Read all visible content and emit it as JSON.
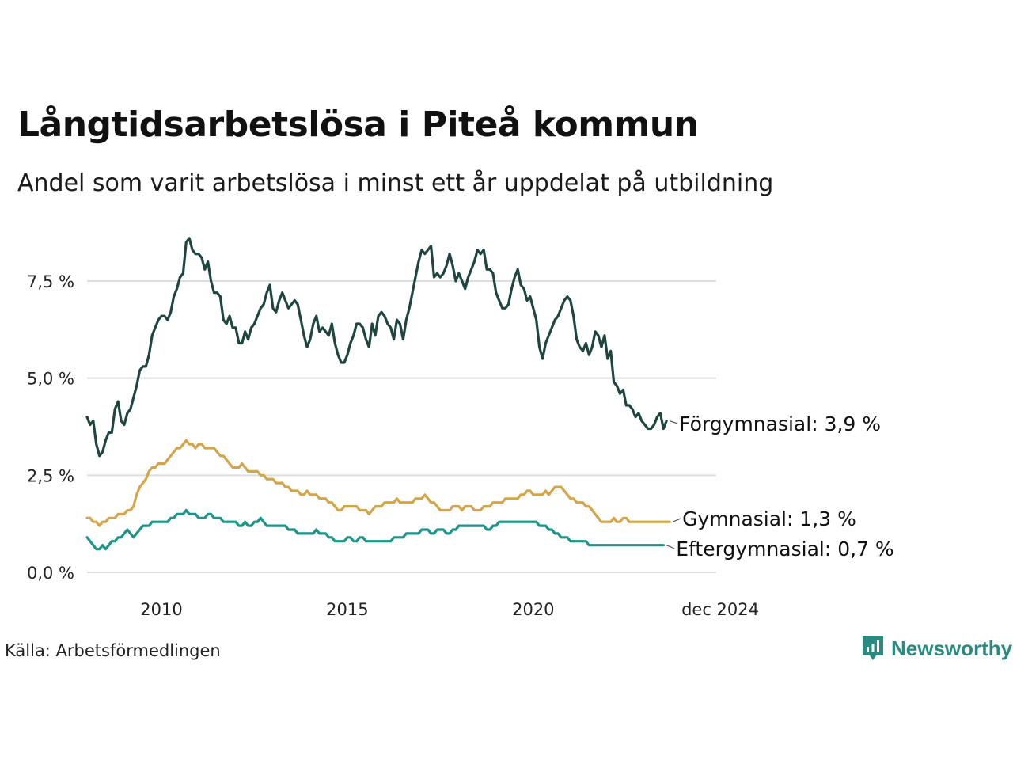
{
  "title": "Långtidsarbetslösa i Piteå kommun",
  "subtitle": "Andel som varit arbetslösa i minst ett år uppdelat på utbildning",
  "source": "Källa: Arbetsförmedlingen",
  "brand": {
    "name": "Newsworthy",
    "icon": "newsworthy-logo-icon",
    "color": "#2a8a80"
  },
  "chart_data": {
    "type": "line",
    "title": "Långtidsarbetslösa i Piteå kommun",
    "xlabel": "",
    "ylabel": "",
    "x_start": 2008.0,
    "x_step": 0.08333,
    "xlim": [
      2008.0,
      2024.92
    ],
    "ylim": [
      0,
      8.8
    ],
    "grid": true,
    "x_ticks": [
      {
        "value": 2010,
        "label": "2010"
      },
      {
        "value": 2015,
        "label": "2015"
      },
      {
        "value": 2020,
        "label": "2020"
      },
      {
        "value": 2024.92,
        "label": "dec 2024"
      }
    ],
    "y_ticks": [
      {
        "value": 0,
        "label": "0,0 %"
      },
      {
        "value": 2.5,
        "label": "2,5 %"
      },
      {
        "value": 5,
        "label": "5,0 %"
      },
      {
        "value": 7.5,
        "label": "7,5 %"
      }
    ],
    "series": [
      {
        "name": "Förgymnasial",
        "label": "Förgymnasial: 3,9 %",
        "color": "#1f4540",
        "values": [
          4.0,
          3.8,
          3.9,
          3.3,
          3.0,
          3.1,
          3.4,
          3.6,
          3.6,
          4.2,
          4.4,
          3.9,
          3.8,
          4.1,
          4.2,
          4.5,
          4.8,
          5.2,
          5.3,
          5.3,
          5.6,
          6.1,
          6.3,
          6.5,
          6.6,
          6.6,
          6.5,
          6.7,
          7.1,
          7.3,
          7.6,
          7.7,
          8.5,
          8.6,
          8.3,
          8.2,
          8.2,
          8.1,
          7.8,
          8.0,
          7.5,
          7.2,
          7.2,
          7.1,
          6.5,
          6.4,
          6.6,
          6.3,
          6.3,
          5.9,
          5.9,
          6.2,
          6.0,
          6.3,
          6.4,
          6.6,
          6.8,
          6.9,
          7.2,
          7.4,
          6.8,
          6.7,
          7.0,
          7.2,
          7.0,
          6.8,
          6.9,
          7.0,
          6.9,
          6.5,
          6.1,
          5.8,
          6.0,
          6.4,
          6.6,
          6.2,
          6.3,
          6.2,
          6.1,
          6.4,
          5.9,
          5.6,
          5.4,
          5.4,
          5.6,
          5.9,
          6.1,
          6.4,
          6.4,
          6.3,
          6.0,
          5.8,
          6.4,
          6.1,
          6.6,
          6.7,
          6.6,
          6.4,
          6.3,
          6.0,
          6.5,
          6.4,
          6.0,
          6.5,
          6.8,
          7.2,
          7.6,
          8.0,
          8.3,
          8.2,
          8.3,
          8.4,
          7.6,
          7.7,
          7.6,
          7.7,
          7.9,
          8.2,
          7.9,
          7.5,
          7.7,
          7.5,
          7.3,
          7.6,
          7.8,
          8.0,
          8.3,
          8.2,
          8.3,
          7.8,
          7.8,
          7.7,
          7.2,
          7.0,
          6.8,
          6.8,
          6.9,
          7.3,
          7.6,
          7.8,
          7.4,
          7.3,
          7.0,
          7.1,
          6.8,
          6.5,
          5.8,
          5.5,
          5.9,
          6.1,
          6.3,
          6.5,
          6.6,
          6.8,
          7.0,
          7.1,
          7.0,
          6.6,
          6.0,
          5.8,
          5.7,
          5.9,
          5.6,
          5.8,
          6.2,
          6.1,
          5.8,
          6.1,
          5.5,
          5.7,
          4.9,
          4.8,
          4.6,
          4.7,
          4.3,
          4.3,
          4.2,
          4.0,
          4.1,
          3.9,
          3.8,
          3.7,
          3.7,
          3.8,
          4.0,
          4.1,
          3.7,
          3.9
        ]
      },
      {
        "name": "Gymnasial",
        "label": "Gymnasial: 1,3 %",
        "color": "#d4a548",
        "values": [
          1.4,
          1.4,
          1.3,
          1.3,
          1.2,
          1.3,
          1.3,
          1.4,
          1.4,
          1.4,
          1.5,
          1.5,
          1.5,
          1.6,
          1.6,
          1.7,
          2.0,
          2.2,
          2.3,
          2.4,
          2.6,
          2.7,
          2.7,
          2.8,
          2.8,
          2.8,
          2.9,
          3.0,
          3.1,
          3.2,
          3.2,
          3.3,
          3.4,
          3.3,
          3.3,
          3.2,
          3.3,
          3.3,
          3.2,
          3.2,
          3.2,
          3.2,
          3.1,
          3.0,
          3.0,
          2.9,
          2.8,
          2.7,
          2.7,
          2.7,
          2.8,
          2.7,
          2.6,
          2.6,
          2.6,
          2.6,
          2.5,
          2.5,
          2.4,
          2.4,
          2.4,
          2.3,
          2.3,
          2.3,
          2.2,
          2.2,
          2.1,
          2.1,
          2.1,
          2.0,
          2.0,
          2.1,
          2.0,
          2.0,
          2.0,
          1.9,
          1.9,
          1.9,
          1.8,
          1.8,
          1.7,
          1.6,
          1.6,
          1.7,
          1.7,
          1.7,
          1.7,
          1.7,
          1.6,
          1.6,
          1.6,
          1.5,
          1.6,
          1.7,
          1.7,
          1.7,
          1.8,
          1.8,
          1.8,
          1.8,
          1.9,
          1.8,
          1.8,
          1.8,
          1.8,
          1.8,
          1.9,
          1.9,
          1.9,
          2.0,
          1.9,
          1.8,
          1.8,
          1.7,
          1.6,
          1.6,
          1.6,
          1.6,
          1.7,
          1.7,
          1.7,
          1.6,
          1.7,
          1.7,
          1.7,
          1.6,
          1.6,
          1.6,
          1.7,
          1.7,
          1.7,
          1.8,
          1.8,
          1.8,
          1.8,
          1.9,
          1.9,
          1.9,
          1.9,
          1.9,
          2.0,
          2.0,
          2.1,
          2.1,
          2.0,
          2.0,
          2.0,
          2.0,
          2.1,
          2.0,
          2.1,
          2.2,
          2.2,
          2.2,
          2.1,
          2.0,
          1.9,
          1.9,
          1.8,
          1.8,
          1.8,
          1.7,
          1.7,
          1.6,
          1.5,
          1.4,
          1.3,
          1.3,
          1.3,
          1.3,
          1.4,
          1.3,
          1.3,
          1.4,
          1.4,
          1.3,
          1.3,
          1.3,
          1.3,
          1.3,
          1.3,
          1.3,
          1.3,
          1.3,
          1.3,
          1.3,
          1.3,
          1.3,
          1.3
        ]
      },
      {
        "name": "Eftergymnasial",
        "label": "Eftergymnasial: 0,7 %",
        "color": "#1d9488",
        "values": [
          0.9,
          0.8,
          0.7,
          0.6,
          0.6,
          0.7,
          0.6,
          0.7,
          0.8,
          0.8,
          0.9,
          0.9,
          1.0,
          1.1,
          1.0,
          0.9,
          1.0,
          1.1,
          1.2,
          1.2,
          1.2,
          1.3,
          1.3,
          1.3,
          1.3,
          1.3,
          1.3,
          1.4,
          1.4,
          1.5,
          1.5,
          1.5,
          1.6,
          1.5,
          1.5,
          1.5,
          1.4,
          1.4,
          1.4,
          1.5,
          1.5,
          1.4,
          1.4,
          1.4,
          1.3,
          1.3,
          1.3,
          1.3,
          1.3,
          1.2,
          1.2,
          1.3,
          1.2,
          1.2,
          1.3,
          1.3,
          1.4,
          1.3,
          1.2,
          1.2,
          1.2,
          1.2,
          1.2,
          1.2,
          1.2,
          1.1,
          1.1,
          1.1,
          1.0,
          1.0,
          1.0,
          1.0,
          1.0,
          1.0,
          1.1,
          1.0,
          1.0,
          1.0,
          0.9,
          0.9,
          0.8,
          0.8,
          0.8,
          0.8,
          0.9,
          0.9,
          0.8,
          0.8,
          0.9,
          0.9,
          0.8,
          0.8,
          0.8,
          0.8,
          0.8,
          0.8,
          0.8,
          0.8,
          0.8,
          0.9,
          0.9,
          0.9,
          0.9,
          1.0,
          1.0,
          1.0,
          1.0,
          1.0,
          1.1,
          1.1,
          1.1,
          1.0,
          1.0,
          1.1,
          1.1,
          1.1,
          1.0,
          1.0,
          1.1,
          1.1,
          1.2,
          1.2,
          1.2,
          1.2,
          1.2,
          1.2,
          1.2,
          1.2,
          1.2,
          1.1,
          1.1,
          1.2,
          1.2,
          1.3,
          1.3,
          1.3,
          1.3,
          1.3,
          1.3,
          1.3,
          1.3,
          1.3,
          1.3,
          1.3,
          1.3,
          1.3,
          1.2,
          1.2,
          1.2,
          1.1,
          1.1,
          1.0,
          1.0,
          0.9,
          0.9,
          0.9,
          0.8,
          0.8,
          0.8,
          0.8,
          0.8,
          0.8,
          0.7,
          0.7,
          0.7,
          0.7,
          0.7,
          0.7,
          0.7,
          0.7,
          0.7,
          0.7,
          0.7,
          0.7,
          0.7,
          0.7,
          0.7,
          0.7,
          0.7,
          0.7,
          0.7,
          0.7,
          0.7,
          0.7,
          0.7,
          0.7,
          0.7
        ]
      }
    ]
  }
}
